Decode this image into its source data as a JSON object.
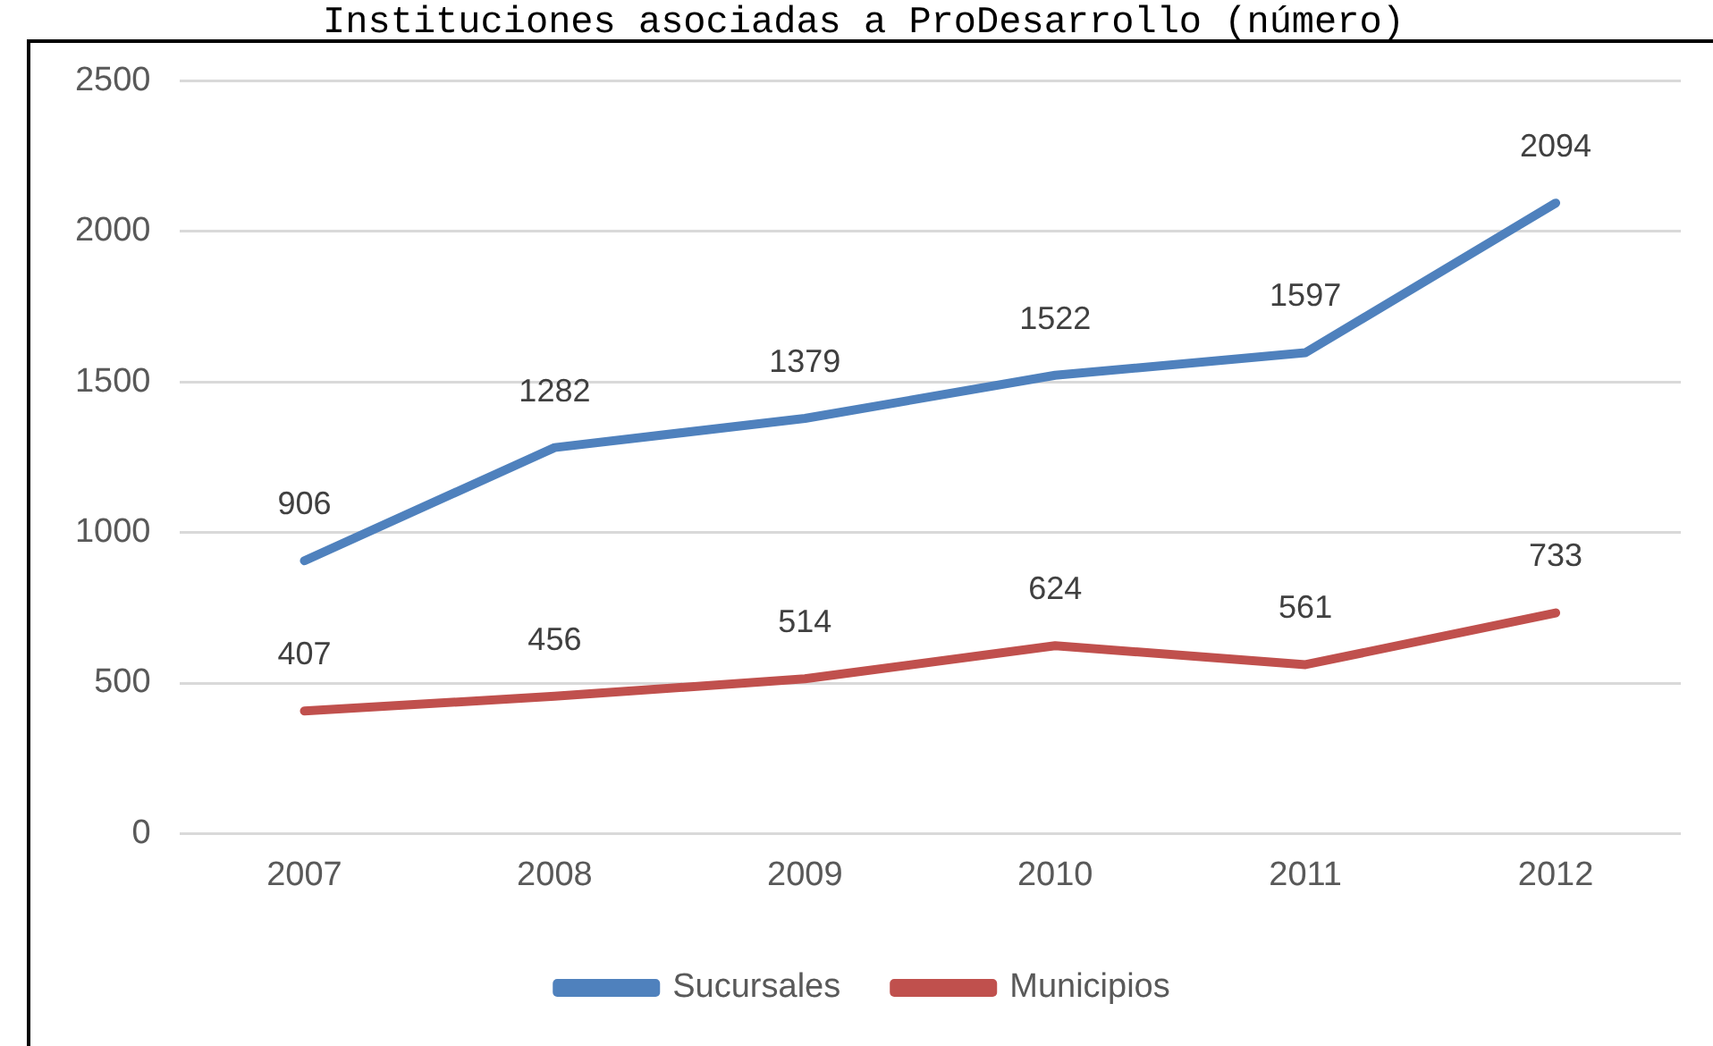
{
  "chart_data": {
    "type": "line",
    "title": "Instituciones asociadas a ProDesarrollo (número)",
    "categories": [
      "2007",
      "2008",
      "2009",
      "2010",
      "2011",
      "2012"
    ],
    "series": [
      {
        "name": "Sucursales",
        "color": "#4f81bd",
        "values": [
          906,
          1282,
          1379,
          1522,
          1597,
          2094
        ]
      },
      {
        "name": "Municipios",
        "color": "#c0504d",
        "values": [
          407,
          456,
          514,
          624,
          561,
          733
        ]
      }
    ],
    "ylim": [
      0,
      2500
    ],
    "yticks": [
      0,
      500,
      1000,
      1500,
      2000,
      2500
    ],
    "grid": "y",
    "legend": "bottom",
    "data_labels": true,
    "marker": "none",
    "line_style": "solid"
  }
}
